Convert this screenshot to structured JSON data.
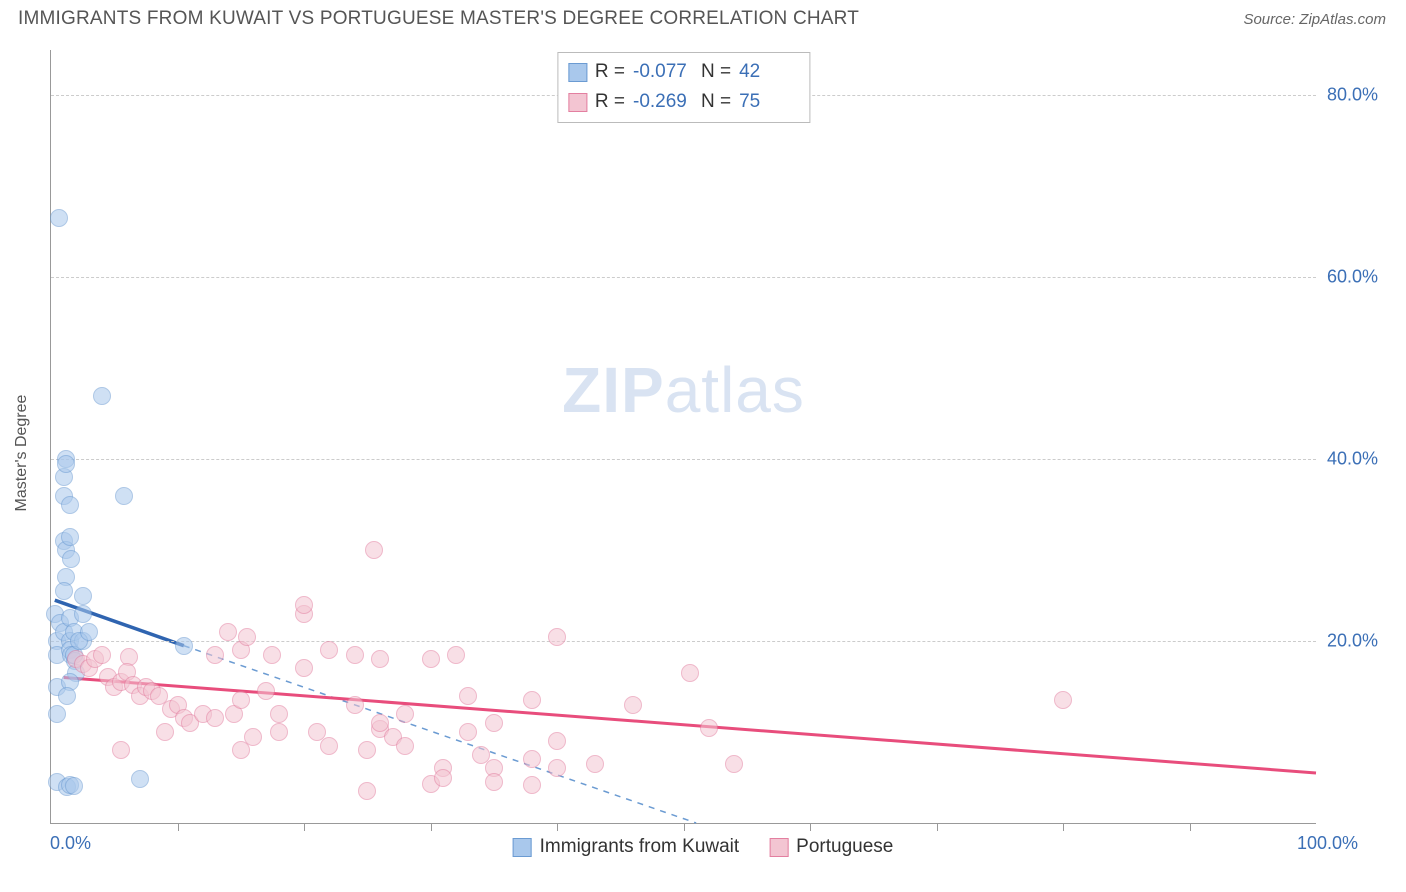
{
  "header": {
    "title": "IMMIGRANTS FROM KUWAIT VS PORTUGUESE MASTER'S DEGREE CORRELATION CHART",
    "source": "Source: ZipAtlas.com"
  },
  "watermark": {
    "zip": "ZIP",
    "atlas": "atlas"
  },
  "chart": {
    "type": "scatter",
    "xlabel": "",
    "ylabel": "Master's Degree",
    "xlim": [
      0,
      100
    ],
    "ylim": [
      0,
      85
    ],
    "x_tick_label_min": "0.0%",
    "x_tick_label_max": "100.0%",
    "x_ticks_minor": [
      10,
      20,
      30,
      40,
      50,
      60,
      70,
      80,
      90
    ],
    "y_ticks": [
      {
        "v": 20,
        "label": "20.0%"
      },
      {
        "v": 40,
        "label": "40.0%"
      },
      {
        "v": 60,
        "label": "60.0%"
      },
      {
        "v": 80,
        "label": "80.0%"
      }
    ],
    "grid_color": "#cccccc",
    "axis_color": "#999999",
    "background_color": "#ffffff",
    "tick_label_color": "#3b6fb6",
    "tick_label_fontsize": 18,
    "marker_size": 18,
    "series": [
      {
        "name": "Immigrants from Kuwait",
        "fill_color": "#a9c8ec",
        "stroke_color": "#6b9bd2",
        "trend_color": "#2f64b0",
        "trend_dash_color": "#6b9bd2",
        "R_label": "R =",
        "R": "-0.077",
        "N_label": "N =",
        "N": "42",
        "trend_solid": {
          "x1": 0.3,
          "y1": 24.5,
          "x2": 10.5,
          "y2": 19.5
        },
        "trend_dash": {
          "x1": 10.5,
          "y1": 19.5,
          "x2": 51,
          "y2": 0
        },
        "points": [
          [
            0.6,
            66.5
          ],
          [
            0.3,
            23
          ],
          [
            0.5,
            20
          ],
          [
            0.5,
            15
          ],
          [
            0.5,
            18.5
          ],
          [
            0.7,
            22
          ],
          [
            1.0,
            38
          ],
          [
            1.0,
            36
          ],
          [
            1.0,
            31
          ],
          [
            1.2,
            40
          ],
          [
            1.2,
            39.5
          ],
          [
            4.0,
            47
          ],
          [
            1.2,
            30
          ],
          [
            1.5,
            35
          ],
          [
            1.5,
            31.5
          ],
          [
            1.2,
            27
          ],
          [
            1.6,
            29
          ],
          [
            1.0,
            25.5
          ],
          [
            1.0,
            21
          ],
          [
            1.5,
            20
          ],
          [
            1.5,
            19
          ],
          [
            1.5,
            22.5
          ],
          [
            1.6,
            18.5
          ],
          [
            1.8,
            21
          ],
          [
            1.9,
            17.8
          ],
          [
            5.8,
            36
          ],
          [
            1.8,
            18.5
          ],
          [
            2.5,
            20
          ],
          [
            2.2,
            20
          ],
          [
            2.0,
            16.5
          ],
          [
            1.5,
            15.5
          ],
          [
            1.3,
            14
          ],
          [
            0.5,
            12
          ],
          [
            0.5,
            4.5
          ],
          [
            1.3,
            4
          ],
          [
            1.5,
            4.2
          ],
          [
            1.8,
            4.1
          ],
          [
            7.0,
            4.8
          ],
          [
            10.5,
            19.5
          ],
          [
            2.5,
            23
          ],
          [
            2.5,
            25
          ],
          [
            3.0,
            21
          ]
        ]
      },
      {
        "name": "Portuguese",
        "fill_color": "#f3c5d2",
        "stroke_color": "#e37fa0",
        "trend_color": "#e84d7c",
        "R_label": "R =",
        "R": "-0.269",
        "N_label": "N =",
        "N": "75",
        "trend_solid": {
          "x1": 1,
          "y1": 16,
          "x2": 100,
          "y2": 5.5
        },
        "points": [
          [
            2.0,
            18
          ],
          [
            2.5,
            17.5
          ],
          [
            3.0,
            17
          ],
          [
            3.5,
            18
          ],
          [
            4.0,
            18.5
          ],
          [
            4.5,
            16
          ],
          [
            5.0,
            15
          ],
          [
            5.5,
            15.5
          ],
          [
            6.2,
            18.3
          ],
          [
            6.0,
            16.6
          ],
          [
            6.5,
            15.2
          ],
          [
            7.0,
            14
          ],
          [
            7.5,
            15
          ],
          [
            8.0,
            14.5
          ],
          [
            8.5,
            14
          ],
          [
            9.0,
            10
          ],
          [
            9.5,
            12.5
          ],
          [
            5.5,
            8.0
          ],
          [
            10,
            13
          ],
          [
            10.5,
            11.5
          ],
          [
            11,
            11
          ],
          [
            12,
            12
          ],
          [
            13,
            11.5
          ],
          [
            13,
            18.5
          ],
          [
            14.5,
            12
          ],
          [
            14,
            21
          ],
          [
            15,
            8
          ],
          [
            15,
            19
          ],
          [
            15.5,
            20.5
          ],
          [
            16,
            9.5
          ],
          [
            17,
            14.5
          ],
          [
            17.5,
            18.5
          ],
          [
            18,
            10
          ],
          [
            18,
            12
          ],
          [
            15,
            13.5
          ],
          [
            20,
            17
          ],
          [
            20,
            23
          ],
          [
            20,
            24
          ],
          [
            21,
            10
          ],
          [
            22,
            8.5
          ],
          [
            22,
            19
          ],
          [
            24,
            13
          ],
          [
            24,
            18.5
          ],
          [
            25,
            3.5
          ],
          [
            25,
            8
          ],
          [
            25.5,
            30
          ],
          [
            26,
            10.3
          ],
          [
            26,
            18
          ],
          [
            26,
            11
          ],
          [
            27,
            9.5
          ],
          [
            28,
            8.5
          ],
          [
            28,
            12
          ],
          [
            30,
            4.3
          ],
          [
            30,
            18
          ],
          [
            31,
            6
          ],
          [
            31,
            5
          ],
          [
            32,
            18.5
          ],
          [
            33,
            10
          ],
          [
            33,
            14
          ],
          [
            34,
            7.5
          ],
          [
            35,
            6
          ],
          [
            35,
            4.5
          ],
          [
            38,
            13.5
          ],
          [
            38,
            7
          ],
          [
            40,
            6.1
          ],
          [
            40,
            9
          ],
          [
            40,
            20.5
          ],
          [
            43,
            6.5
          ],
          [
            38,
            4.2
          ],
          [
            46,
            13
          ],
          [
            50.5,
            16.5
          ],
          [
            52,
            10.5
          ],
          [
            54,
            6.5
          ],
          [
            80,
            13.5
          ],
          [
            35,
            11
          ]
        ]
      }
    ]
  },
  "legend_bottom": {
    "series1": "Immigrants from Kuwait",
    "series2": "Portuguese"
  }
}
